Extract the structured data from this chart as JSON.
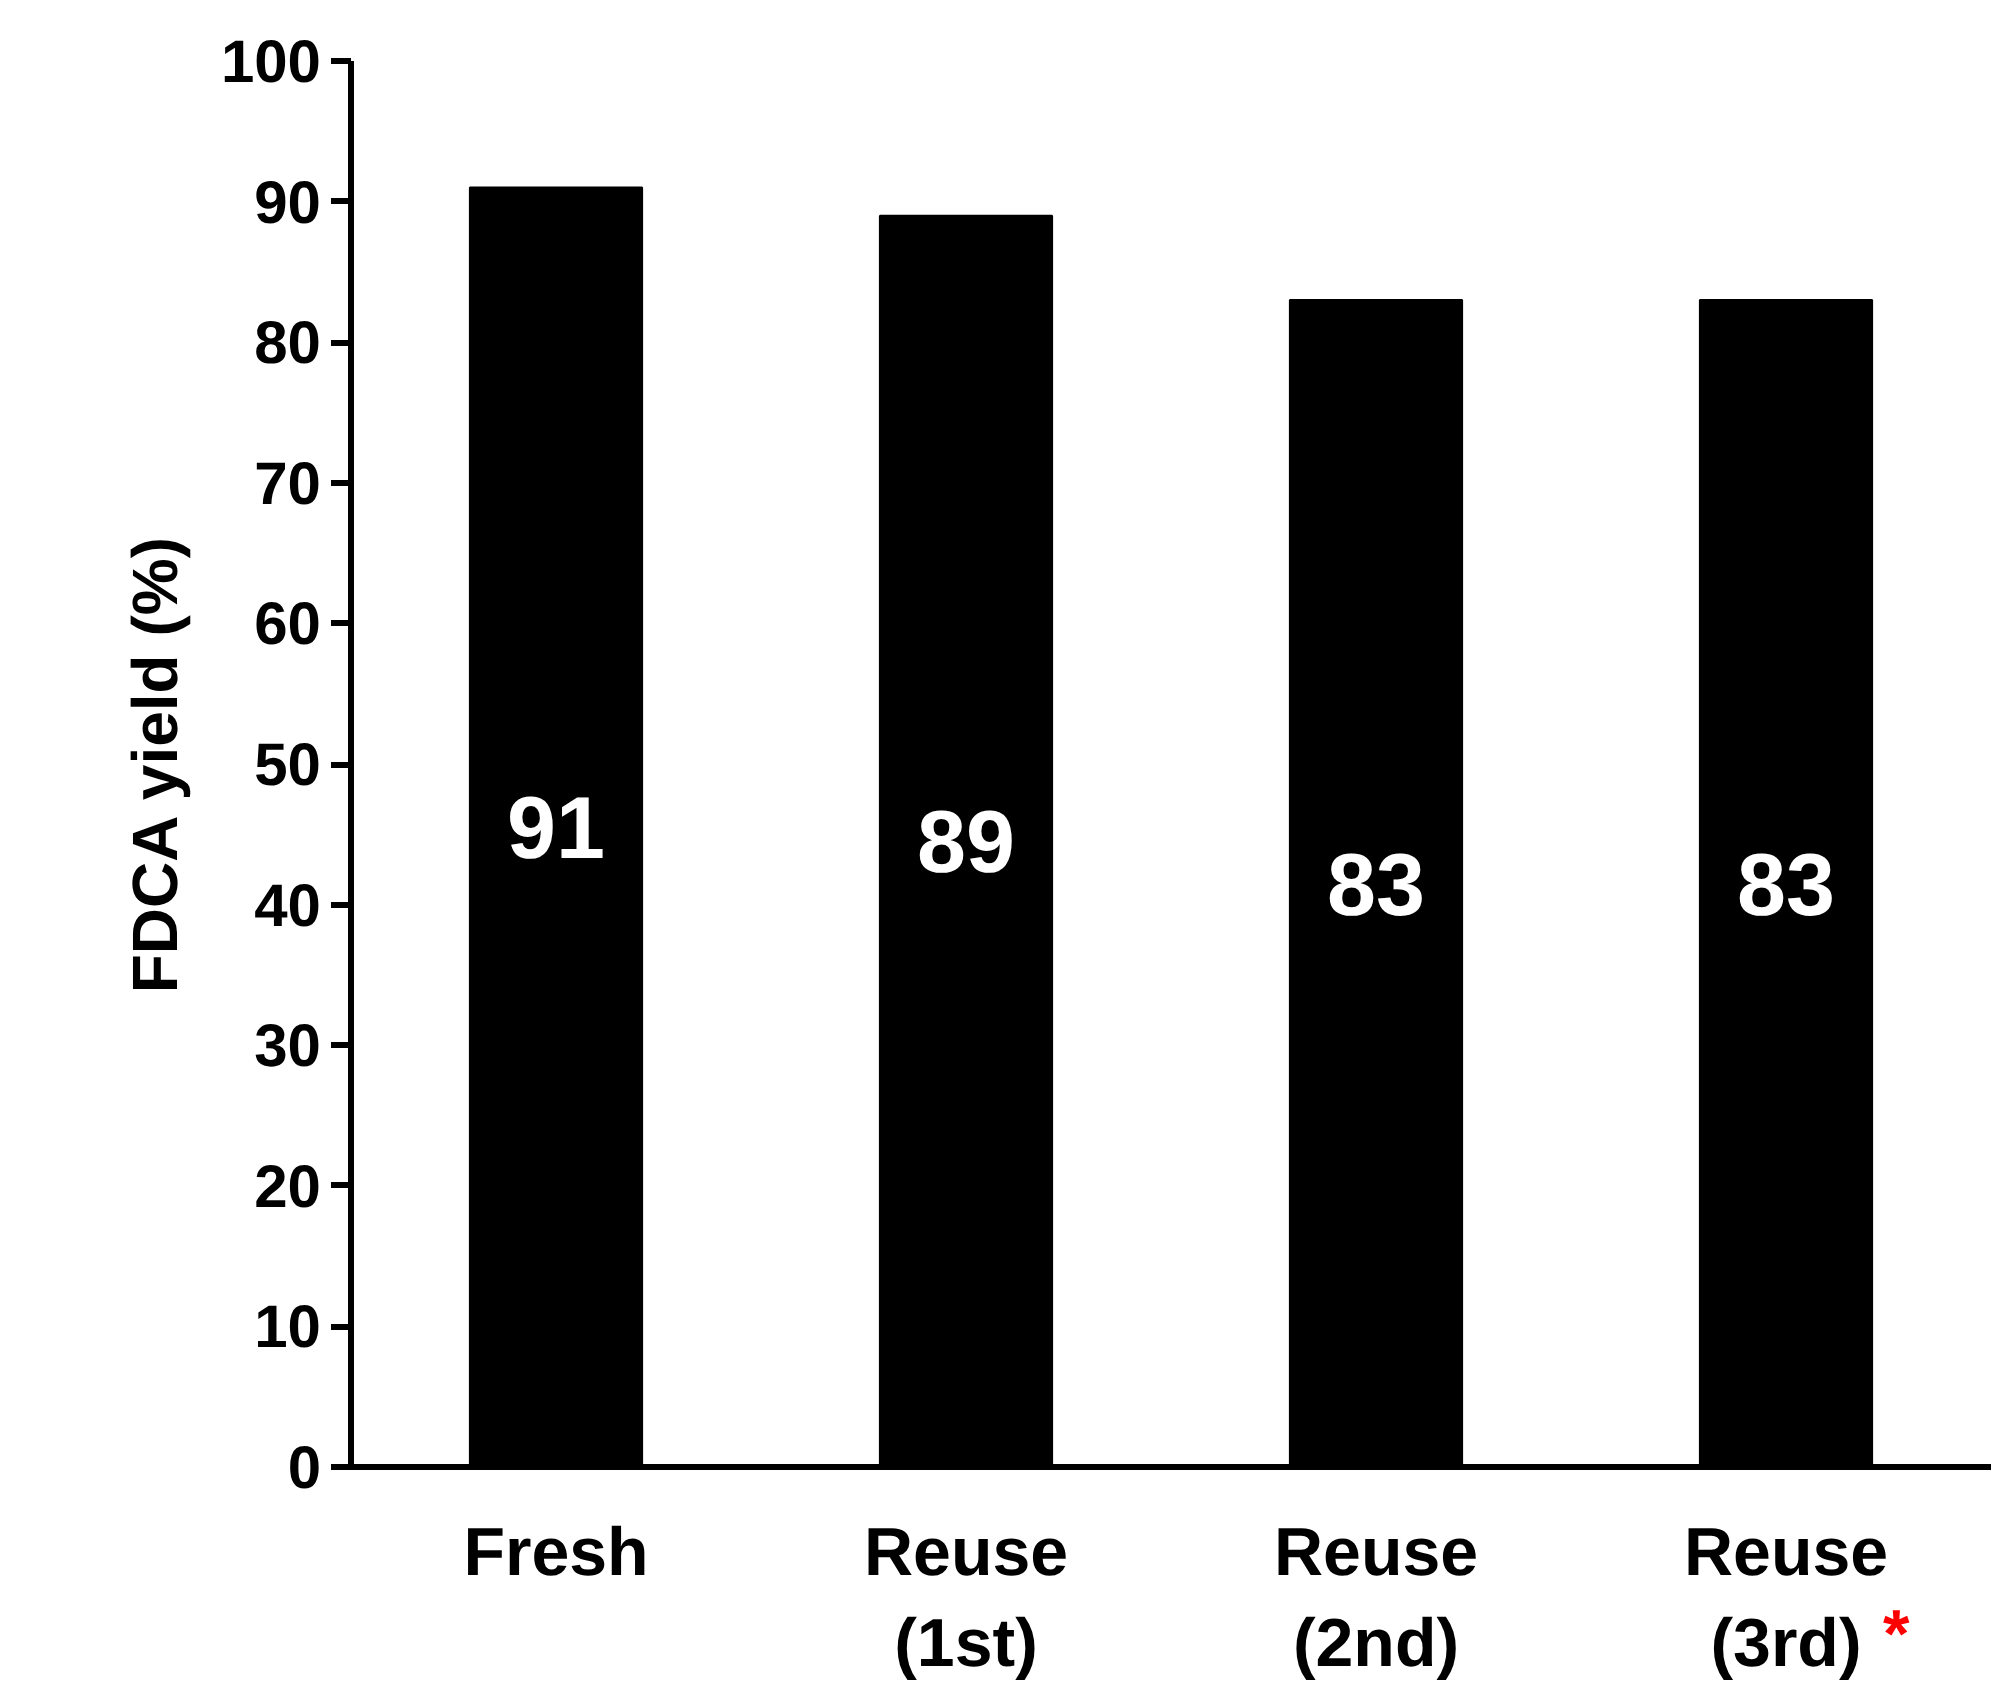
{
  "chart_data": {
    "type": "bar",
    "ylabel": "FDCA yield (%)",
    "categories": [
      "Fresh",
      "Reuse (1st)",
      "Reuse (2nd)",
      "Reuse (3rd)"
    ],
    "values": [
      91,
      89,
      83,
      83
    ],
    "color": "#000000",
    "data_labels": true,
    "ylim": [
      0,
      100
    ],
    "yticks": [
      0,
      10,
      20,
      30,
      40,
      50,
      60,
      70,
      80,
      90,
      100
    ],
    "grid": false,
    "annotations": [
      "*"
    ]
  }
}
